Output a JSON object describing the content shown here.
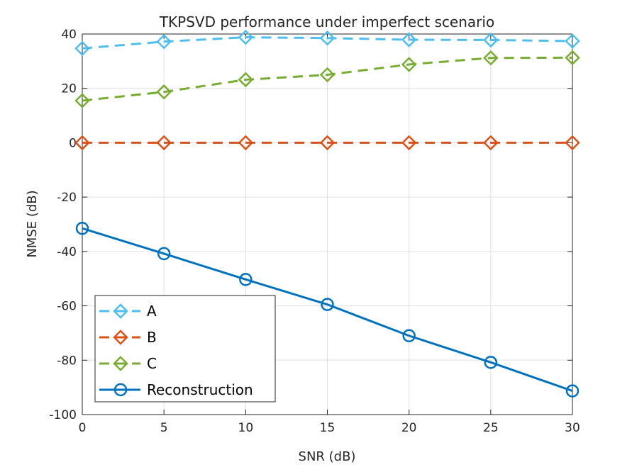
{
  "chart_data": {
    "type": "line",
    "title": "TKPSVD performance under imperfect scenario",
    "xlabel": "SNR (dB)",
    "ylabel": "NMSE (dB)",
    "xlim": [
      0,
      30
    ],
    "ylim": [
      -100,
      40
    ],
    "xticks": [
      0,
      5,
      10,
      15,
      20,
      25,
      30
    ],
    "yticks": [
      -100,
      -80,
      -60,
      -40,
      -20,
      0,
      20,
      40
    ],
    "grid": true,
    "legend_position": "bottom-left",
    "x": [
      0,
      5,
      10,
      15,
      20,
      25,
      30
    ],
    "series": [
      {
        "name": "A",
        "values": [
          34.7,
          37.2,
          38.8,
          38.5,
          37.9,
          37.8,
          37.4
        ],
        "color": "#4DBEEE",
        "linestyle": "dashed",
        "marker": "diamond"
      },
      {
        "name": "B",
        "values": [
          0,
          0,
          0,
          0,
          0,
          0,
          0
        ],
        "color": "#D95319",
        "linestyle": "dashed",
        "marker": "diamond"
      },
      {
        "name": "C",
        "values": [
          15.5,
          18.7,
          23.2,
          25.0,
          28.8,
          31.2,
          31.3
        ],
        "color": "#77AC30",
        "linestyle": "dashed",
        "marker": "diamond"
      },
      {
        "name": "Reconstruction",
        "values": [
          -31.5,
          -40.8,
          -50.3,
          -59.5,
          -71.0,
          -80.8,
          -91.3
        ],
        "color": "#0072BD",
        "linestyle": "solid",
        "marker": "circle"
      }
    ]
  }
}
